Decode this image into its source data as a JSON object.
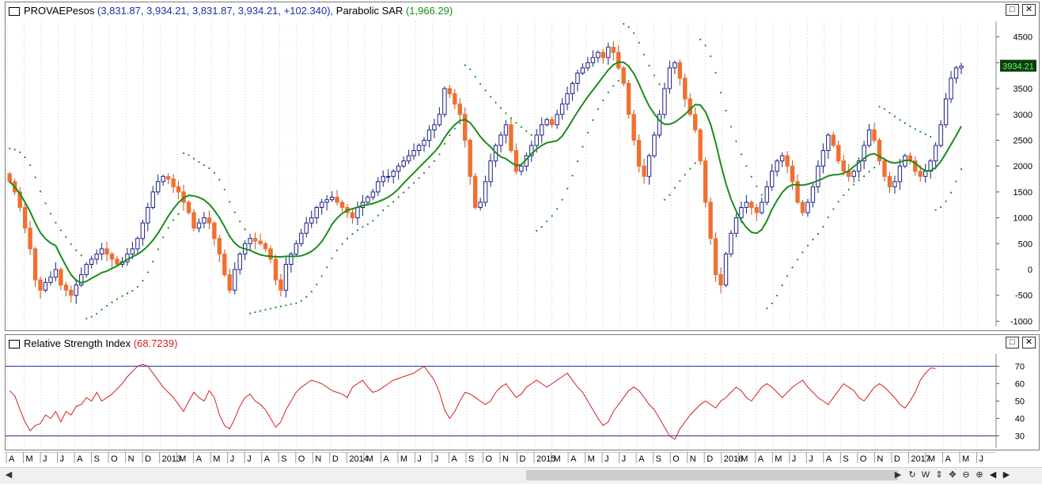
{
  "price_panel": {
    "symbol": "PROVAEPesos",
    "ohlc_text": "(3,831.87, 3,934.21, 3,831.87, 3,934.21, +102.340),",
    "indicator_name": "Parabolic SAR",
    "indicator_value": "(1,966.29)",
    "last_price_label": "3934.21",
    "buttons": {
      "maximize": "□",
      "close": "✕"
    }
  },
  "rsi_panel": {
    "name": "Relative Strength Index",
    "value": "(68.7239)",
    "buttons": {
      "maximize": "□",
      "close": "✕"
    }
  },
  "colors": {
    "up_candle_border": "#1b2080",
    "down_candle": "#f07030",
    "moving_average": "#1a8c1a",
    "sar_dots": "#1a8c1a",
    "rsi_line": "#d62020",
    "rsi_levels": "#1b2fa6",
    "last_price_bg": "#0d3d0d",
    "last_price_fg": "#66ff66"
  },
  "chart_data": [
    {
      "type": "candlestick",
      "ylim": [
        -1100,
        4800
      ],
      "yticks": [
        4500,
        4000,
        3500,
        3000,
        2500,
        2000,
        1500,
        1000,
        500,
        0,
        -500,
        -1000
      ],
      "grid": "vertical-dotted",
      "approx_close_by_week": [
        1700,
        1500,
        1200,
        800,
        400,
        -200,
        -400,
        -250,
        -150,
        0,
        -300,
        -400,
        -500,
        -300,
        -100,
        100,
        200,
        300,
        400,
        300,
        200,
        100,
        150,
        300,
        400,
        600,
        900,
        1200,
        1500,
        1700,
        1800,
        1750,
        1600,
        1500,
        1300,
        1100,
        800,
        900,
        1000,
        900,
        600,
        300,
        -100,
        -400,
        0,
        300,
        500,
        600,
        550,
        500,
        400,
        200,
        -200,
        -400,
        100,
        300,
        500,
        700,
        900,
        1000,
        1200,
        1300,
        1350,
        1400,
        1300,
        1200,
        1100,
        1000,
        1200,
        1300,
        1400,
        1500,
        1700,
        1800,
        1800,
        1900,
        2000,
        2100,
        2200,
        2300,
        2400,
        2500,
        2700,
        2800,
        3000,
        3500,
        3400,
        3200,
        3000,
        2500,
        1800,
        1200,
        1300,
        1700,
        2100,
        2400,
        2600,
        2800,
        2300,
        1900,
        2000,
        2200,
        2400,
        2600,
        2800,
        2900,
        2800,
        3000,
        3200,
        3400,
        3600,
        3800,
        3900,
        4000,
        4100,
        4200,
        4100,
        4300,
        4200,
        3900,
        3600,
        3000,
        2500,
        2000,
        1800,
        2200,
        2600,
        3000,
        3500,
        3900,
        4000,
        3700,
        3300,
        3000,
        2700,
        2100,
        1300,
        600,
        -100,
        -300,
        300,
        700,
        1000,
        1200,
        1300,
        1200,
        1100,
        1300,
        1600,
        1900,
        2100,
        2200,
        2000,
        1700,
        1300,
        1100,
        1300,
        1600,
        2000,
        2300,
        2600,
        2400,
        2100,
        1900,
        1800,
        1900,
        2100,
        2400,
        2700,
        2500,
        2100,
        1800,
        1600,
        1700,
        2000,
        2200,
        2100,
        1900,
        1800,
        1900,
        2100,
        2400,
        2800,
        3300,
        3700,
        3900,
        3934
      ]
    },
    {
      "type": "line",
      "series": [
        {
          "name": "Relative Strength Index",
          "last_value": 68.7239
        }
      ],
      "ylim": [
        23,
        77
      ],
      "yticks": [
        70,
        60,
        50,
        40,
        30
      ],
      "levels": [
        70,
        30
      ],
      "approx_values": [
        56,
        53,
        45,
        38,
        33,
        36,
        37,
        42,
        40,
        44,
        38,
        44,
        42,
        47,
        48,
        52,
        50,
        55,
        50,
        52,
        54,
        57,
        60,
        64,
        67,
        70,
        71,
        70,
        66,
        62,
        58,
        55,
        52,
        48,
        44,
        50,
        55,
        52,
        50,
        56,
        52,
        42,
        36,
        34,
        40,
        47,
        52,
        54,
        50,
        48,
        45,
        40,
        35,
        38,
        45,
        50,
        55,
        58,
        60,
        62,
        61,
        60,
        58,
        56,
        55,
        54,
        52,
        58,
        60,
        62,
        58,
        55,
        56,
        58,
        60,
        62,
        63,
        64,
        65,
        66,
        68,
        70,
        66,
        62,
        55,
        45,
        40,
        44,
        50,
        55,
        54,
        52,
        50,
        48,
        50,
        55,
        58,
        60,
        56,
        52,
        54,
        58,
        60,
        62,
        60,
        58,
        60,
        62,
        64,
        66,
        62,
        58,
        55,
        50,
        45,
        40,
        36,
        38,
        44,
        48,
        52,
        56,
        58,
        56,
        52,
        48,
        45,
        40,
        35,
        30,
        28,
        34,
        38,
        42,
        45,
        48,
        50,
        48,
        46,
        50,
        52,
        55,
        58,
        56,
        52,
        50,
        54,
        58,
        60,
        58,
        55,
        52,
        55,
        58,
        60,
        62,
        58,
        55,
        52,
        50,
        48,
        52,
        56,
        60,
        58,
        56,
        52,
        50,
        54,
        58,
        60,
        58,
        55,
        52,
        48,
        46,
        50,
        55,
        62,
        66,
        69,
        68.7
      ]
    }
  ],
  "x_axis": {
    "labels": [
      "A",
      "M",
      "J",
      "J",
      "A",
      "S",
      "O",
      "N",
      "D",
      "2013",
      "M",
      "A",
      "M",
      "J",
      "J",
      "A",
      "S",
      "O",
      "N",
      "D",
      "2014",
      "M",
      "A",
      "M",
      "J",
      "J",
      "A",
      "S",
      "O",
      "N",
      "D",
      "2015",
      "M",
      "A",
      "M",
      "J",
      "J",
      "A",
      "S",
      "O",
      "N",
      "D",
      "2016",
      "M",
      "A",
      "M",
      "J",
      "J",
      "A",
      "S",
      "O",
      "N",
      "D",
      "2017",
      "M",
      "A",
      "M",
      "J"
    ]
  }
}
